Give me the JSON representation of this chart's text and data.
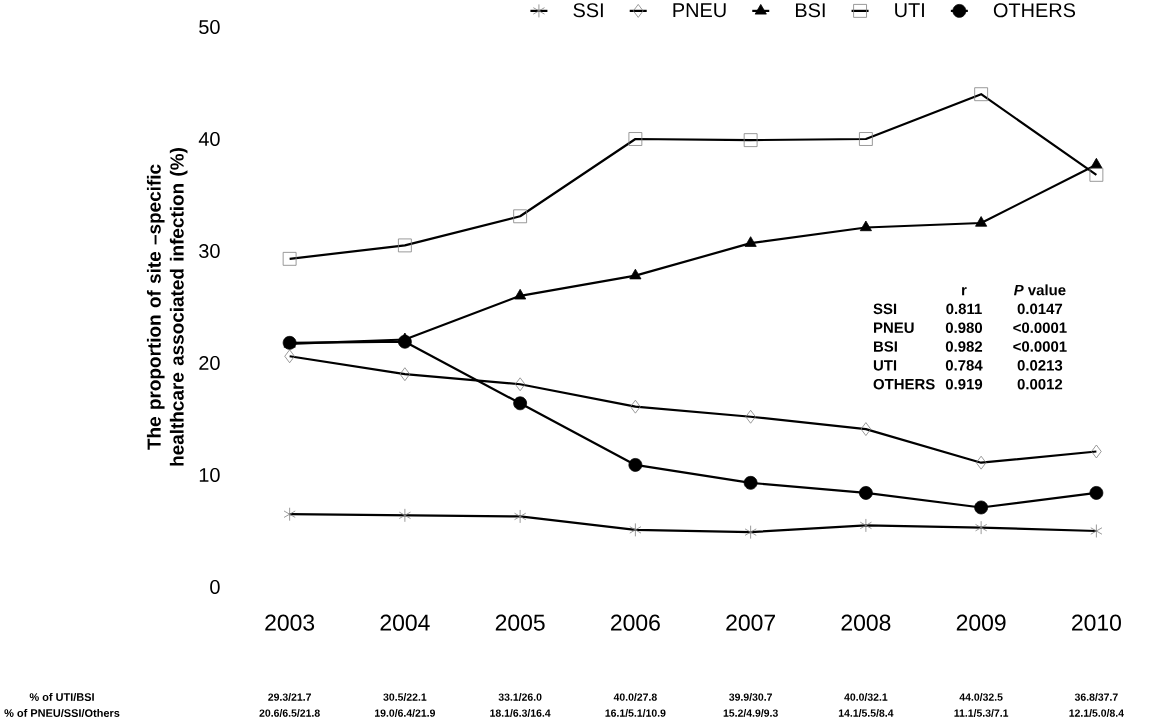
{
  "chart_data": {
    "type": "line",
    "ylabel": "The proportion of site –specific healthcare associated infection (%)",
    "categories": [
      "2003",
      "2004",
      "2005",
      "2006",
      "2007",
      "2008",
      "2009",
      "2010"
    ],
    "series": [
      {
        "name": "SSI",
        "color": "#000000",
        "marker": "cross",
        "values": [
          6.5,
          6.4,
          6.3,
          5.1,
          4.9,
          5.5,
          5.3,
          5.0
        ]
      },
      {
        "name": "PNEU",
        "color": "#000000",
        "marker": "diamond",
        "values": [
          20.6,
          19.0,
          18.1,
          16.1,
          15.2,
          14.1,
          11.1,
          12.1
        ]
      },
      {
        "name": "BSI",
        "color": "#000000",
        "marker": "triangle",
        "values": [
          21.7,
          22.1,
          26.0,
          27.8,
          30.7,
          32.1,
          32.5,
          37.7
        ]
      },
      {
        "name": "UTI",
        "color": "#000000",
        "marker": "square",
        "values": [
          29.3,
          30.5,
          33.1,
          40.0,
          39.9,
          40.0,
          44.0,
          36.8
        ]
      },
      {
        "name": "OTHERS",
        "color": "#000000",
        "marker": "circle",
        "values": [
          21.8,
          21.9,
          16.4,
          10.9,
          9.3,
          8.4,
          7.1,
          8.4
        ]
      }
    ],
    "ylim": [
      0,
      50
    ],
    "yticks": [
      0,
      10,
      20,
      30,
      40,
      50
    ],
    "grid": false,
    "legend": "top",
    "line_style": "solid",
    "annotations": [
      "r",
      "*P* value",
      "SSI",
      "0.811",
      "0.0147",
      "PNEU",
      "0.980",
      "<0.0001",
      "BSI",
      "0.982",
      "<0.0001",
      "UTI",
      "0.784",
      "0.0213",
      "OTHERS",
      "0.919",
      "0.0012",
      "% of UTI/BSI",
      "% of PNEU/SSI/Others",
      "29.3/21.7",
      "30.5/22.1",
      "33.1/26.0",
      "40.0/27.8",
      "39.9/30.7",
      "40.0/32.1",
      "44.0/32.5",
      "36.8/37.7",
      "20.6/6.5/21.8",
      "19.0/6.4/21.9",
      "18.1/6.3/16.4",
      "16.1/5.1/10.9",
      "15.2/4.9/9.3",
      "14.1/5.5/8.4",
      "11.1/5.3/7.1",
      "12.1/5.0/8.4"
    ]
  }
}
